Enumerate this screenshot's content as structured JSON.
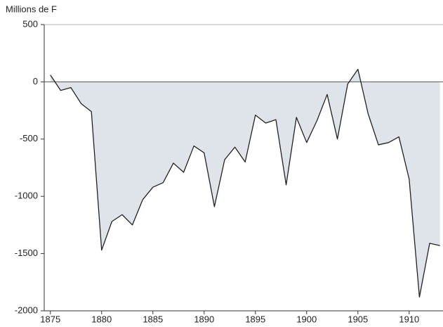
{
  "chart_data": {
    "type": "area",
    "ylabel": "Millions de F",
    "x": [
      1875,
      1876,
      1877,
      1878,
      1879,
      1880,
      1881,
      1882,
      1883,
      1884,
      1885,
      1886,
      1887,
      1888,
      1889,
      1890,
      1891,
      1892,
      1893,
      1894,
      1895,
      1896,
      1897,
      1898,
      1899,
      1900,
      1901,
      1902,
      1903,
      1904,
      1905,
      1906,
      1907,
      1908,
      1909,
      1910,
      1911,
      1912,
      1913
    ],
    "values": [
      60,
      -75,
      -50,
      -190,
      -260,
      -1470,
      -1220,
      -1160,
      -1250,
      -1030,
      -920,
      -880,
      -710,
      -790,
      -560,
      -620,
      -1090,
      -680,
      -570,
      -700,
      -290,
      -360,
      -330,
      -900,
      -310,
      -530,
      -340,
      -110,
      -500,
      -20,
      110,
      -280,
      -550,
      -530,
      -480,
      -850,
      -1880,
      -1410,
      -1430
    ],
    "color": "#222222",
    "fill": "#dfe3ea",
    "xlim": [
      1874.4,
      1913.3
    ],
    "xticks": [
      1875,
      1880,
      1885,
      1890,
      1895,
      1900,
      1905,
      1910
    ],
    "ylim": [
      -2000,
      500
    ],
    "yticks": [
      500,
      0,
      -500,
      -1000,
      -1500,
      -2000
    ]
  }
}
